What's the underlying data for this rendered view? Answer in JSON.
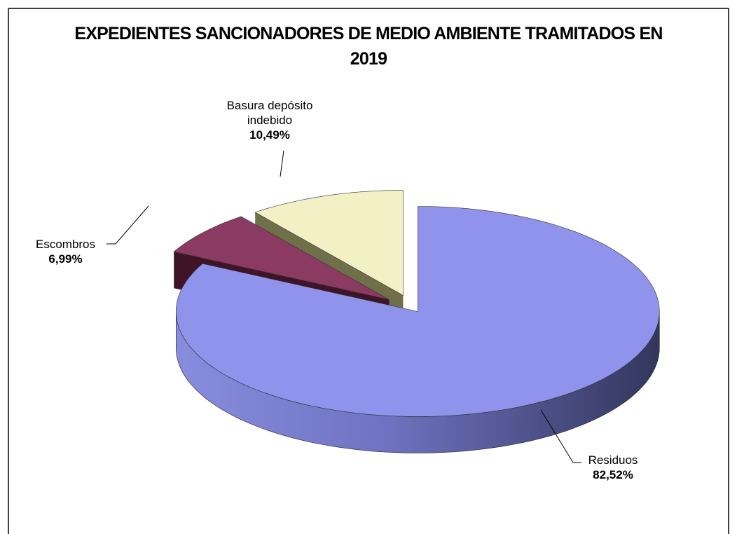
{
  "chart_data": {
    "type": "pie3d",
    "title": "EXPEDIENTES SANCIONADORES DE MEDIO AMBIENTE TRAMITADOS EN 2019",
    "categories": [
      "Residuos",
      "Escombros",
      "Basura depósito indebido"
    ],
    "values": [
      82.52,
      6.99,
      10.49
    ],
    "value_labels": [
      "82,52%",
      "6,99%",
      "10,49%"
    ],
    "colors": [
      "#8f93ec",
      "#8b3a62",
      "#f2f0c4"
    ]
  }
}
